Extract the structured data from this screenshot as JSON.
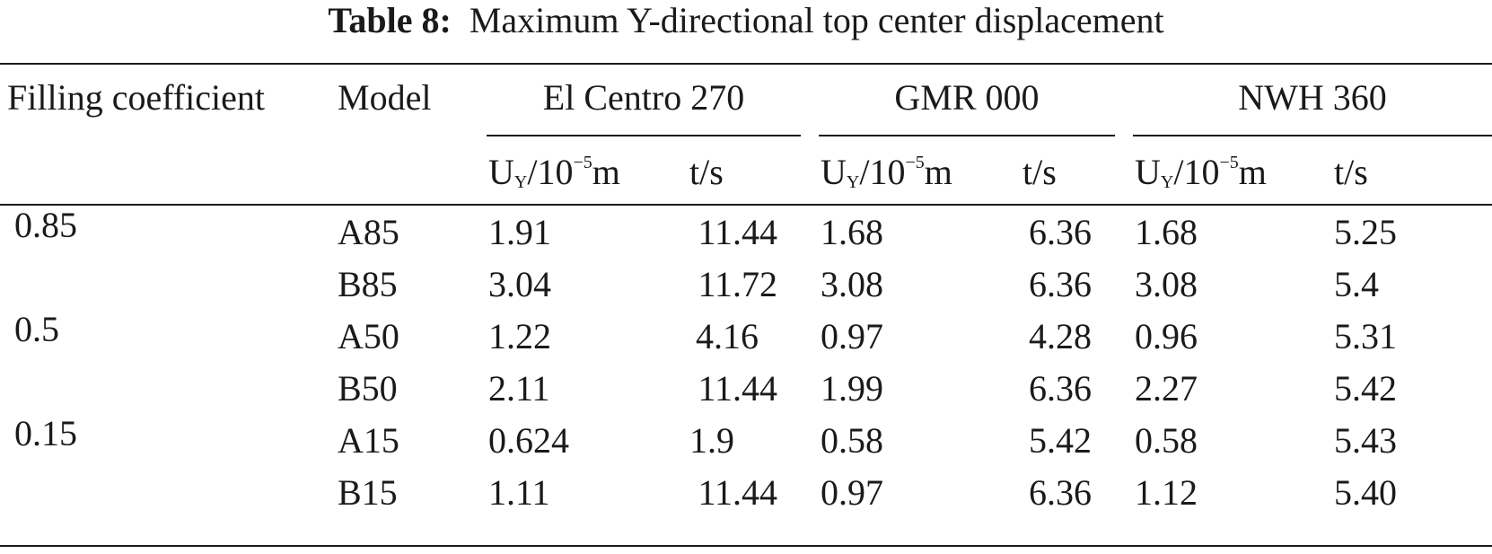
{
  "table": {
    "caption_label": "Table 8:",
    "caption_text": "Maximum Y-directional top center displacement",
    "headers": {
      "filling_coefficient": "Filling coefficient",
      "model": "Model",
      "groups": [
        "El Centro 270",
        "GMR 000",
        "NWH 360"
      ],
      "sub_disp": {
        "base": "U",
        "sub": "Y",
        "mid": "/10",
        "sup": "−5",
        "end": "m"
      },
      "sub_time": "t/s"
    },
    "rows": [
      {
        "coef": "0.85",
        "model": "A85",
        "v": [
          "1.91",
          "11.44",
          "1.68",
          "6.36",
          "1.68",
          "5.25"
        ]
      },
      {
        "coef": "",
        "model": "B85",
        "v": [
          "3.04",
          "11.72",
          "3.08",
          "6.36",
          "3.08",
          "5.4"
        ]
      },
      {
        "coef": "0.5",
        "model": "A50",
        "v": [
          "1.22",
          "4.16",
          "0.97",
          "4.28",
          "0.96",
          "5.31"
        ]
      },
      {
        "coef": "",
        "model": "B50",
        "v": [
          "2.11",
          "11.44",
          "1.99",
          "6.36",
          "2.27",
          "5.42"
        ]
      },
      {
        "coef": "0.15",
        "model": "A15",
        "v": [
          "0.624",
          "1.9",
          "0.58",
          "5.42",
          "0.58",
          "5.43"
        ]
      },
      {
        "coef": "",
        "model": "B15",
        "v": [
          "1.11",
          "11.44",
          "0.97",
          "6.36",
          "1.12",
          "5.40"
        ]
      }
    ]
  }
}
